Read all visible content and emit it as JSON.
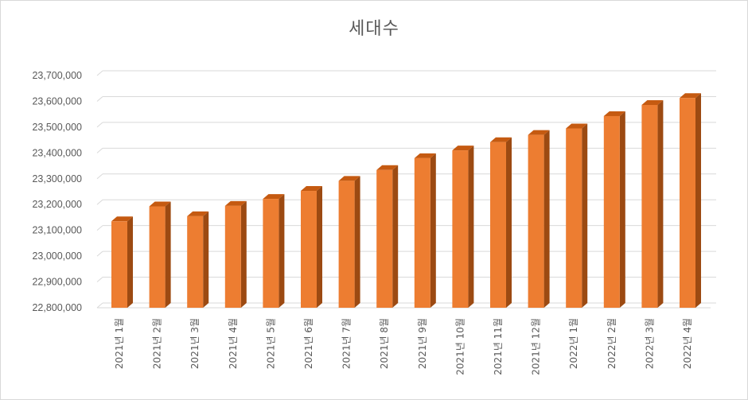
{
  "chart_data": {
    "type": "bar",
    "title": "세대수",
    "xlabel": "",
    "ylabel": "",
    "ylim": [
      22800000,
      23700000
    ],
    "ytick_step": 100000,
    "ytick_labels": [
      "22,800,000",
      "22,900,000",
      "23,000,000",
      "23,100,000",
      "23,200,000",
      "23,300,000",
      "23,400,000",
      "23,500,000",
      "23,600,000",
      "23,700,000"
    ],
    "categories": [
      "2021년 1월",
      "2021년 2월",
      "2021년 3월",
      "2021년 4월",
      "2021년 5월",
      "2021년 6월",
      "2021년 7월",
      "2021년 8월",
      "2021년 9월",
      "2021년 10월",
      "2021년 11월",
      "2021년 12월",
      "2022년 1월",
      "2022년 2월",
      "2022년 3월",
      "2022년 4월"
    ],
    "values": [
      23135000,
      23193000,
      23155000,
      23195000,
      23222000,
      23253000,
      23292000,
      23334000,
      23380000,
      23410000,
      23442000,
      23470000,
      23495000,
      23543000,
      23586000,
      23613000
    ],
    "grid": true,
    "legend": "none",
    "colors": {
      "bar_front": "#ed7d31",
      "bar_side": "#9c4a12",
      "bar_top": "#c55a11"
    }
  }
}
